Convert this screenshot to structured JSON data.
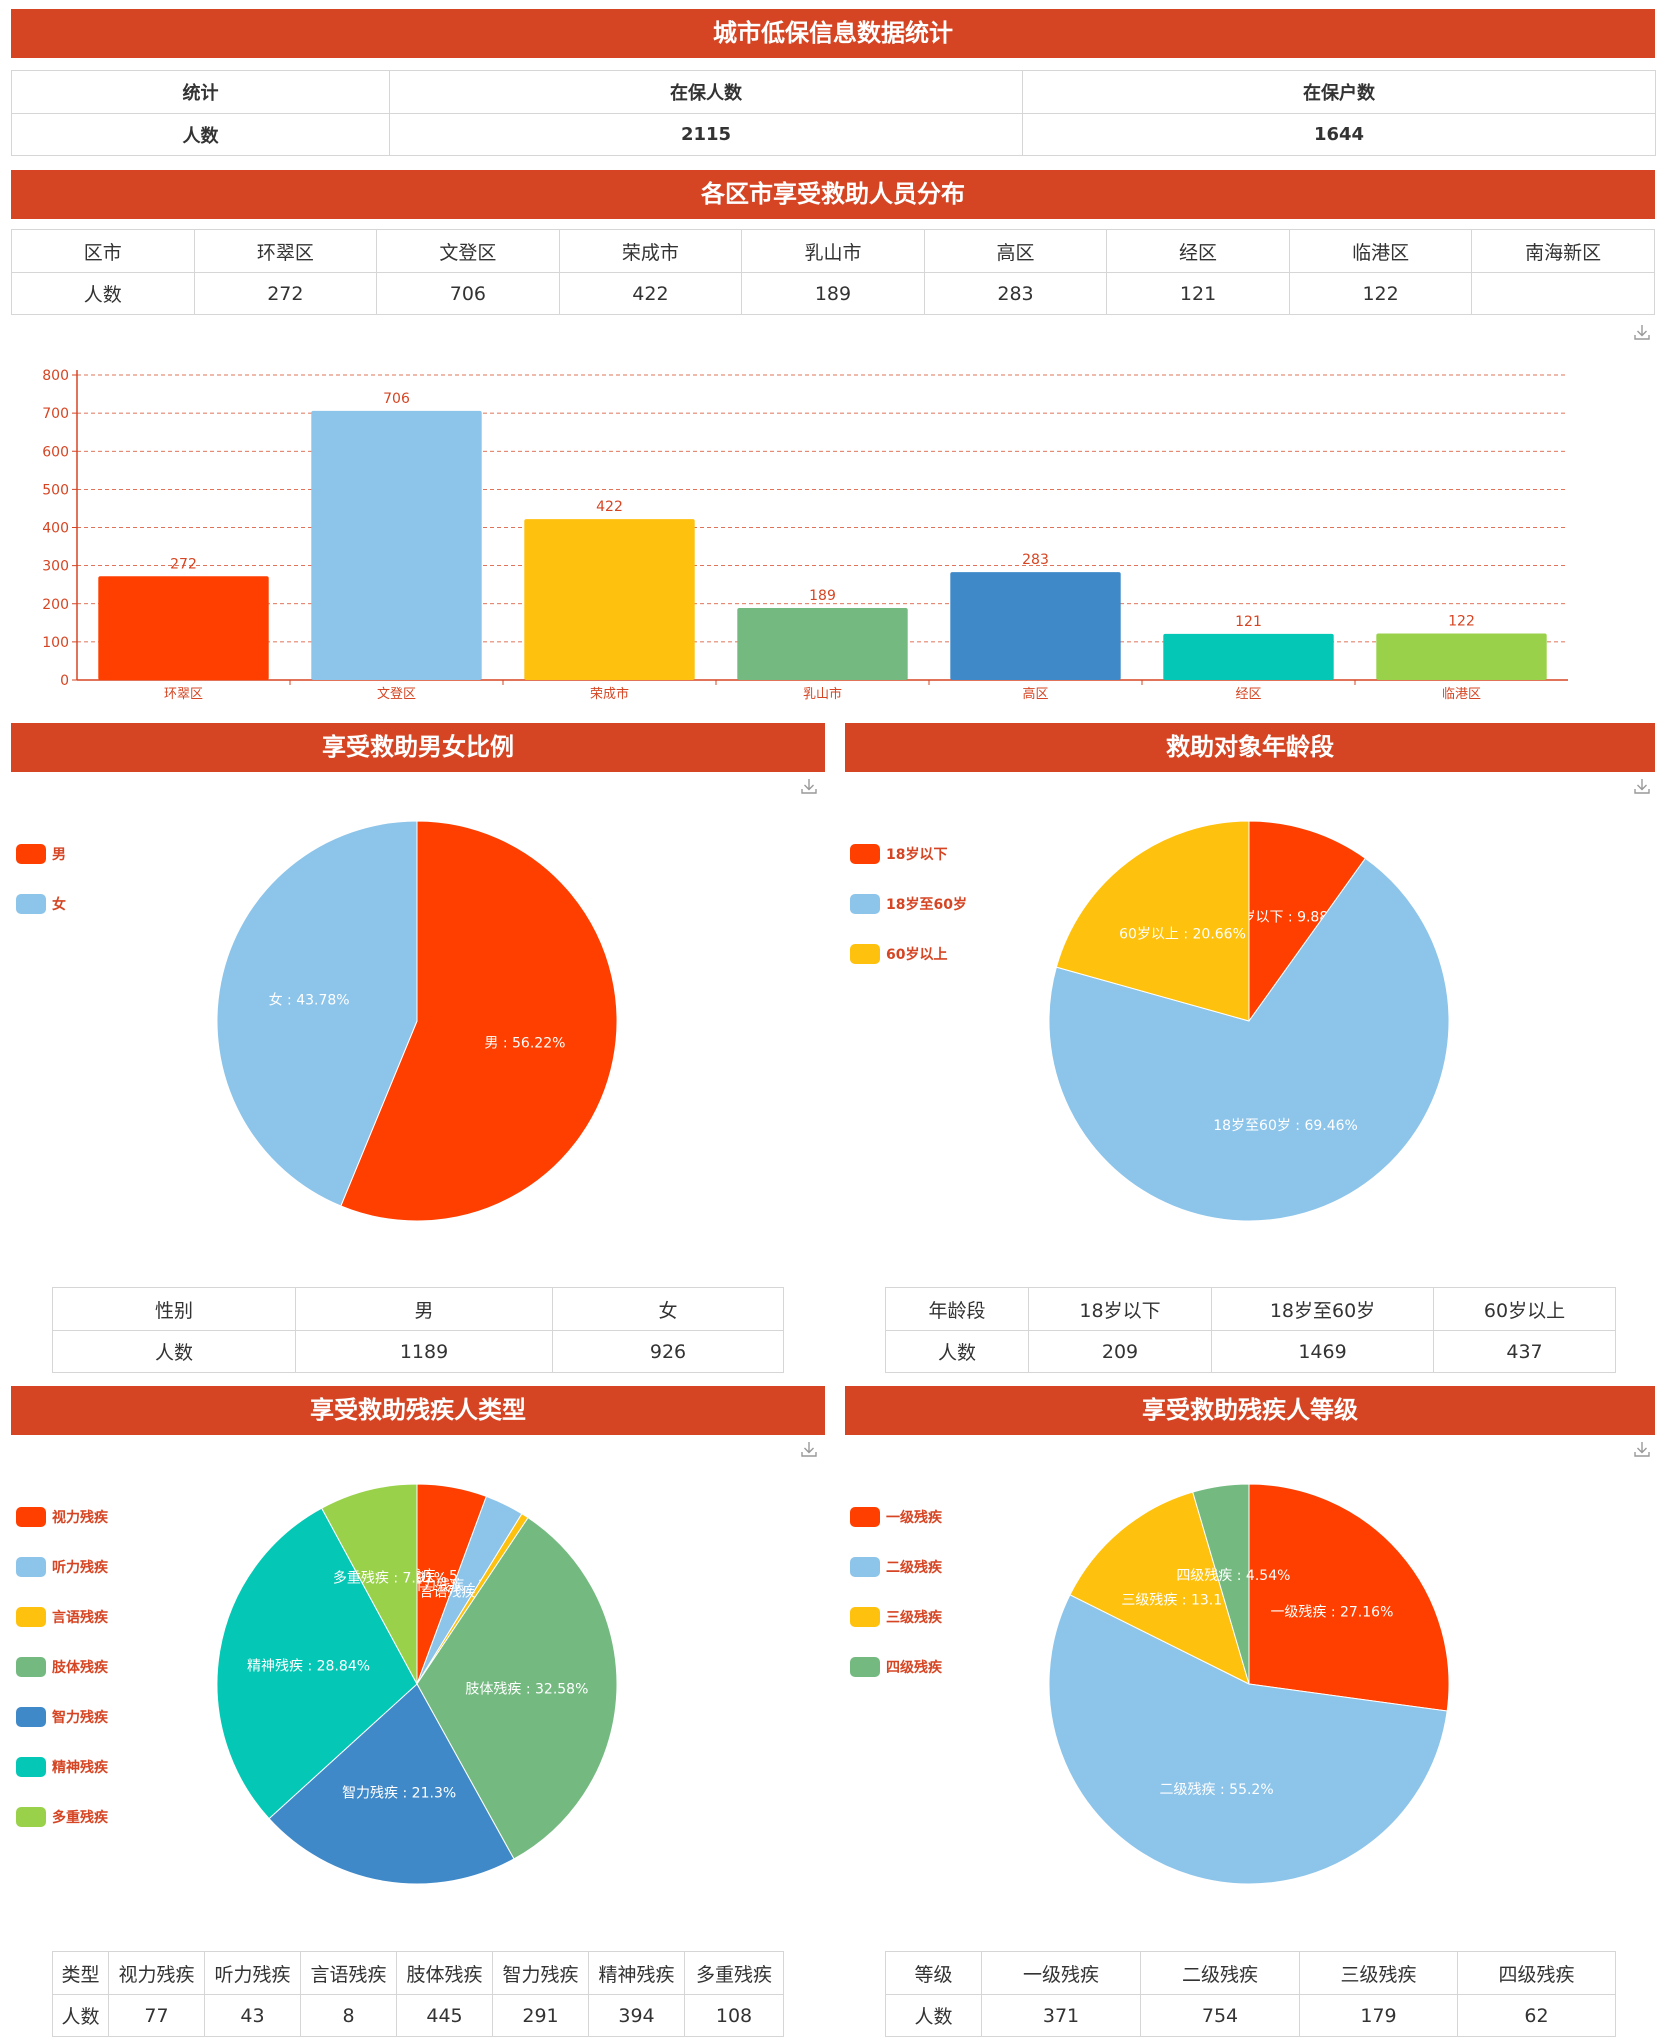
{
  "colors": {
    "banner": "#d54523",
    "palette": [
      "#ff3f00",
      "#8cc4ea",
      "#fec10e",
      "#74ba80",
      "#3f89c9",
      "#05c7b5",
      "#99d24a"
    ],
    "axis": "#d54523"
  },
  "overview": {
    "title": "城市低保信息数据统计",
    "headers": [
      "统计",
      "在保人数",
      "在保户数"
    ],
    "row": [
      "人数",
      "2115",
      "1644"
    ]
  },
  "district": {
    "title": "各区市享受救助人员分布",
    "headers": [
      "区市",
      "环翠区",
      "文登区",
      "荣成市",
      "乳山市",
      "高区",
      "经区",
      "临港区",
      "南海新区"
    ],
    "row": [
      "人数",
      "272",
      "706",
      "422",
      "189",
      "283",
      "121",
      "122",
      ""
    ]
  },
  "gender": {
    "title": "享受救助男女比例",
    "headers": [
      "性别",
      "男",
      "女"
    ],
    "row": [
      "人数",
      "1189",
      "926"
    ]
  },
  "age": {
    "title": "救助对象年龄段",
    "headers": [
      "年龄段",
      "18岁以下",
      "18岁至60岁",
      "60岁以上"
    ],
    "row": [
      "人数",
      "209",
      "1469",
      "437"
    ]
  },
  "disability_type": {
    "title": "享受救助残疾人类型",
    "headers": [
      "类型",
      "视力残疾",
      "听力残疾",
      "言语残疾",
      "肢体残疾",
      "智力残疾",
      "精神残疾",
      "多重残疾"
    ],
    "row": [
      "人数",
      "77",
      "43",
      "8",
      "445",
      "291",
      "394",
      "108"
    ]
  },
  "disability_level": {
    "title": "享受救助残疾人等级",
    "headers": [
      "等级",
      "一级残疾",
      "二级残疾",
      "三级残疾",
      "四级残疾"
    ],
    "row": [
      "人数",
      "371",
      "754",
      "179",
      "62"
    ]
  },
  "chart_data": [
    {
      "type": "bar",
      "categories": [
        "环翠区",
        "文登区",
        "荣成市",
        "乳山市",
        "高区",
        "经区",
        "临港区"
      ],
      "values": [
        272,
        706,
        422,
        189,
        283,
        121,
        122
      ],
      "ylim": [
        0,
        800
      ],
      "yticks": [
        "0",
        "100",
        "200",
        "300",
        "400",
        "500",
        "600",
        "700",
        "800"
      ],
      "grid": true
    },
    {
      "type": "pie",
      "legend": [
        "男",
        "女"
      ],
      "values": [
        1189,
        926
      ],
      "labels": [
        "男 : 56.22%",
        "女 : 43.78%"
      ]
    },
    {
      "type": "pie",
      "legend": [
        "18岁以下",
        "18岁至60岁",
        "60岁以上"
      ],
      "values": [
        209,
        1469,
        437
      ],
      "labels": [
        "18岁以下 : 9.88%",
        "18岁至60岁 : 69.46%",
        "60岁以上 : 20.66%"
      ]
    },
    {
      "type": "pie",
      "legend": [
        "视力残疾",
        "听力残疾",
        "言语残疾",
        "肢体残疾",
        "智力残疾",
        "精神残疾",
        "多重残疾"
      ],
      "values": [
        77,
        43,
        8,
        445,
        291,
        394,
        108
      ],
      "labels": [
        "视力残疾 : 5.64%",
        "听力残疾 : 3.15%",
        "言语残疾 : 0.58%",
        "肢体残疾 : 32.58%",
        "智力残疾 : 21.3%",
        "精神残疾 : 28.84%",
        "多重残疾 : 7.91%"
      ]
    },
    {
      "type": "pie",
      "legend": [
        "一级残疾",
        "二级残疾",
        "三级残疾",
        "四级残疾"
      ],
      "values": [
        371,
        754,
        179,
        62
      ],
      "labels": [
        "一级残疾 : 27.16%",
        "二级残疾 : 55.2%",
        "三级残疾 : 13.1%",
        "四级残疾 : 4.54%"
      ]
    }
  ]
}
